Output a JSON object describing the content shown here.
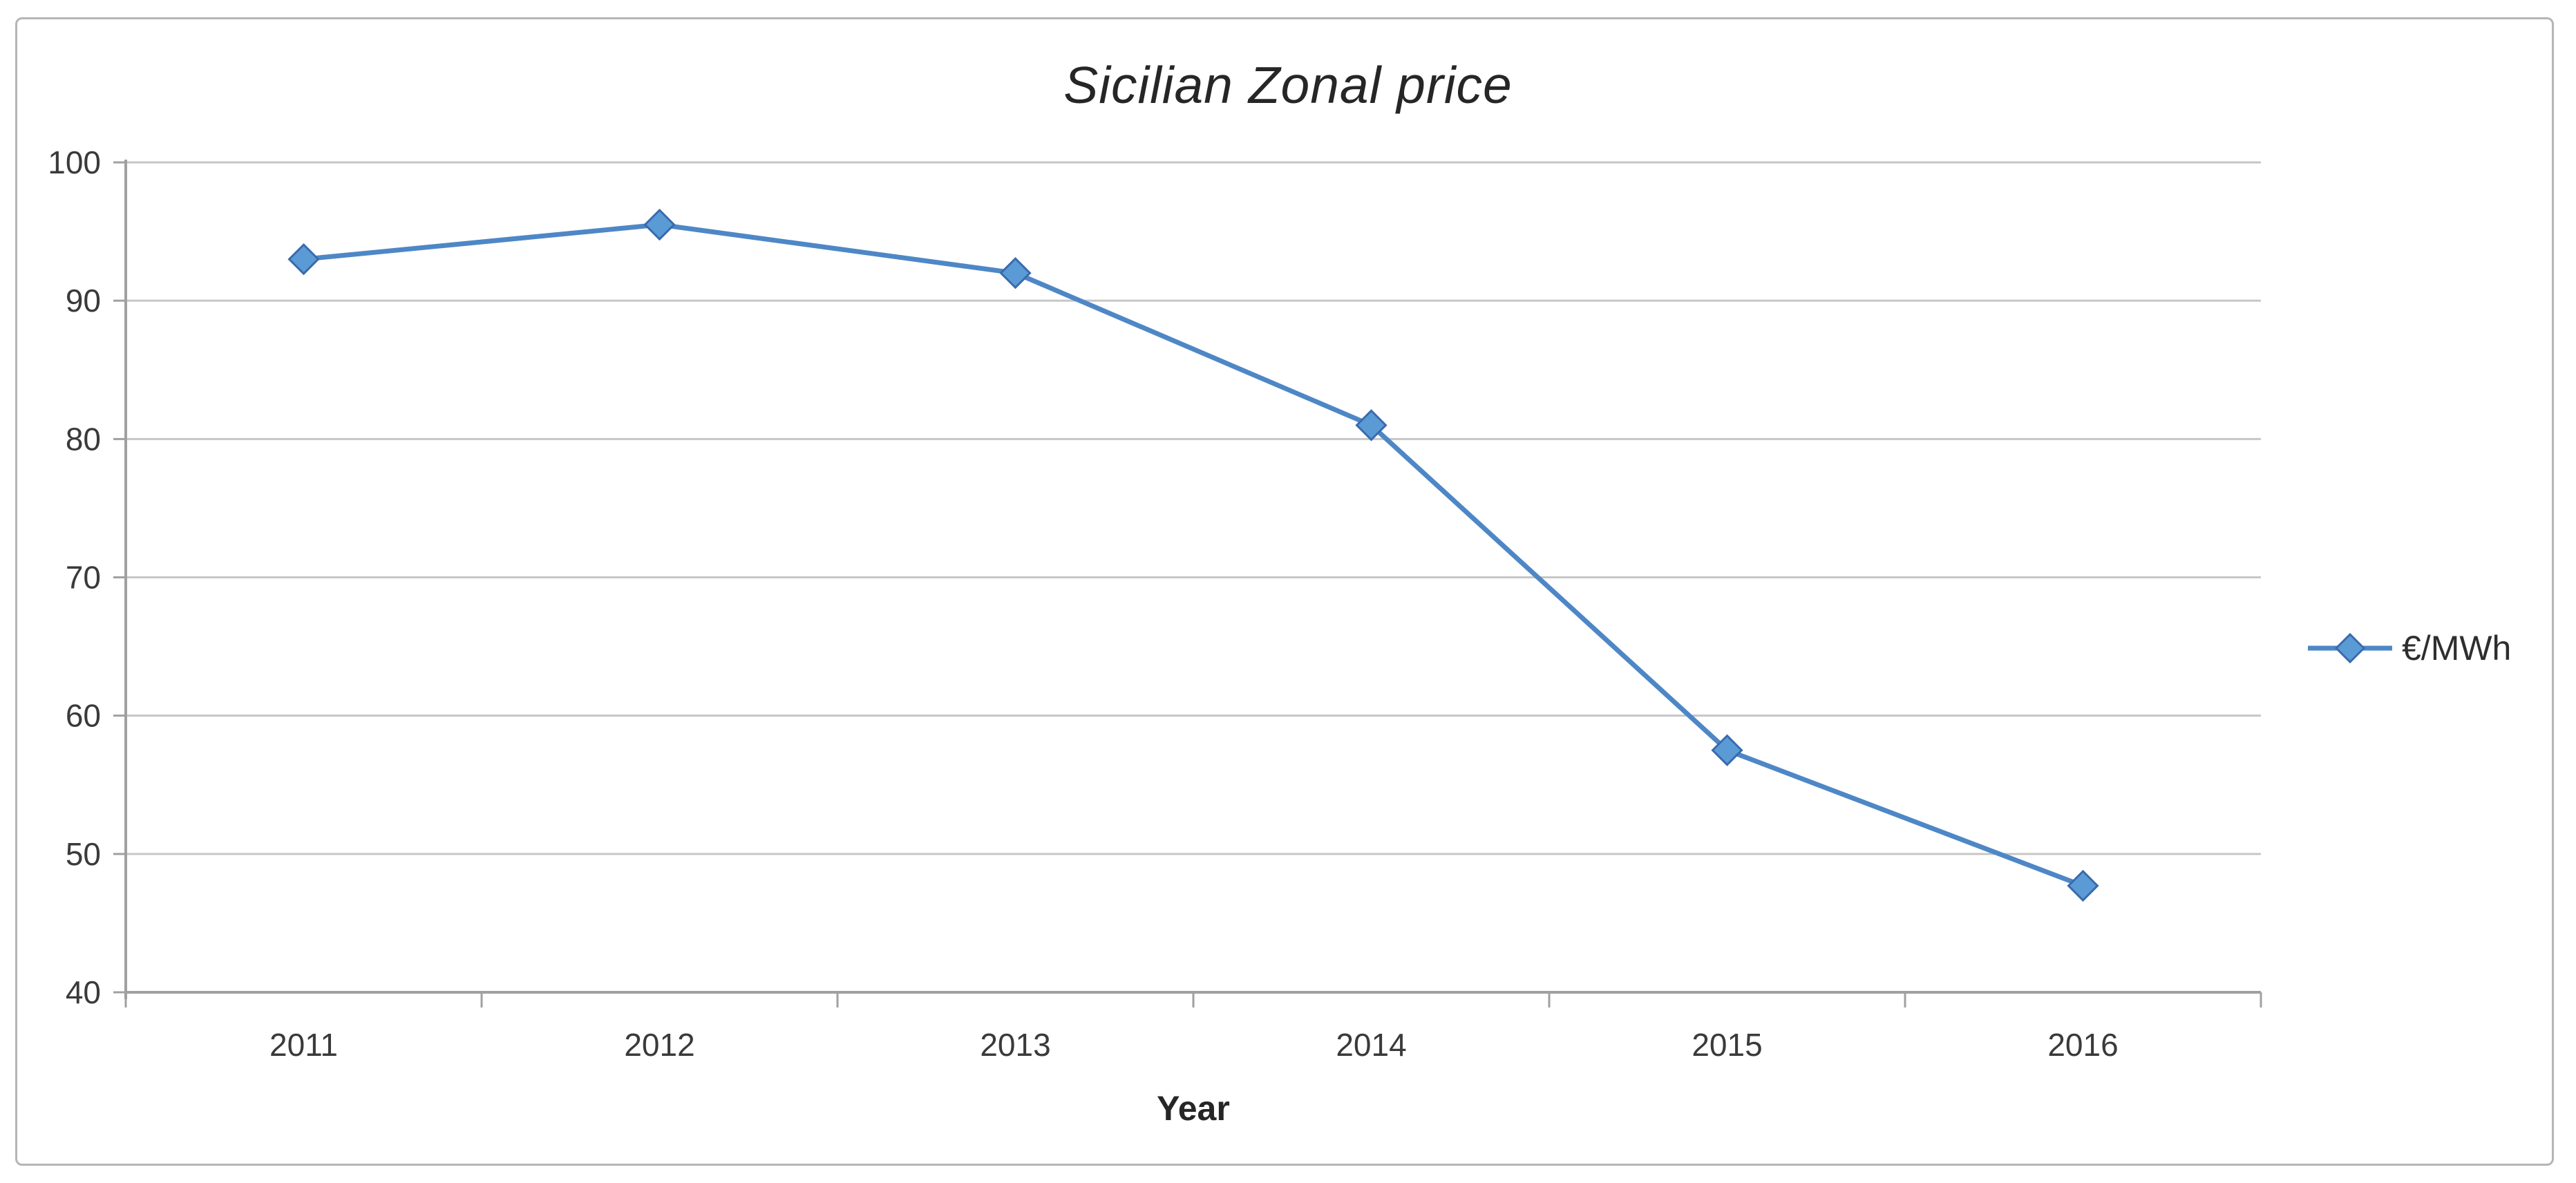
{
  "chart_data": {
    "type": "line",
    "title": "Sicilian Zonal price",
    "xlabel": "Year",
    "ylabel": "",
    "categories": [
      "2011",
      "2012",
      "2013",
      "2014",
      "2015",
      "2016"
    ],
    "series": [
      {
        "name": "€/MWh",
        "values": [
          93,
          95.5,
          92,
          81,
          57.5,
          47.7
        ]
      }
    ],
    "ylim": [
      40,
      100
    ],
    "yticks": [
      40,
      50,
      60,
      70,
      80,
      90,
      100
    ],
    "grid": true,
    "legend_position": "right",
    "marker_shape": "diamond"
  },
  "colors": {
    "line": "#4e87c6",
    "marker_fill": "#5b9bd5",
    "marker_stroke": "#3a6aad",
    "gridline": "#c6c6c6",
    "axis": "#a0a0a0",
    "tick_label": "#3a3a3a",
    "frame_border": "#b5b5b5"
  }
}
